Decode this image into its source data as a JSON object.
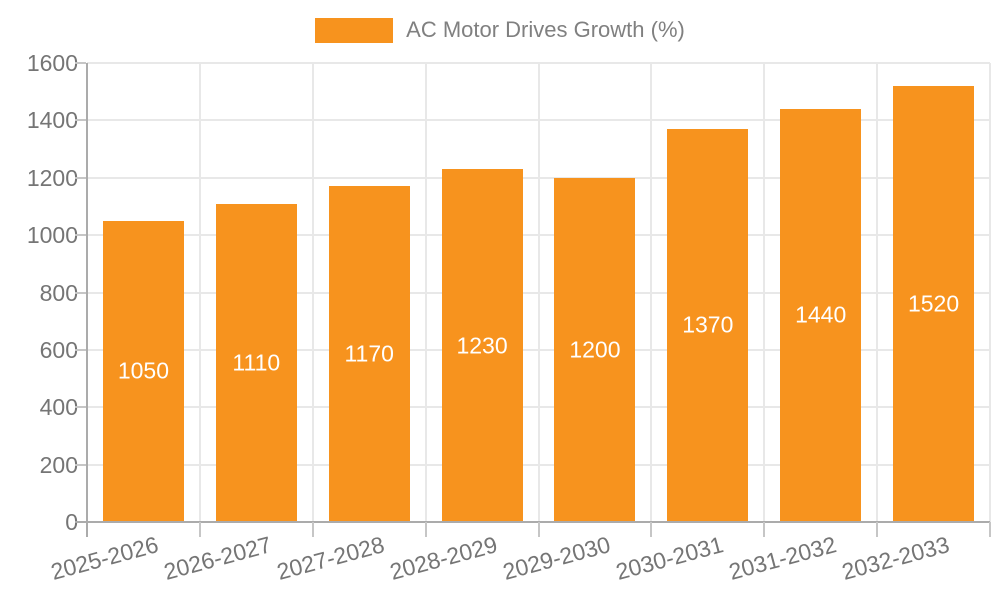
{
  "legend": {
    "label": "AC Motor Drives Growth (%)"
  },
  "chart_data": {
    "type": "bar",
    "title": "AC Motor Drives Growth (%)",
    "series_name": "AC Motor Drives Growth (%)",
    "categories": [
      "2025-2026",
      "2026-2027",
      "2027-2028",
      "2028-2029",
      "2029-2030",
      "2030-2031",
      "2031-2032",
      "2032-2033"
    ],
    "values": [
      1050,
      1110,
      1170,
      1230,
      1200,
      1370,
      1440,
      1520
    ],
    "bar_labels": [
      "1050",
      "1110",
      "1170",
      "1230",
      "1200",
      "1370",
      "1440",
      "1520"
    ],
    "xlabel": "",
    "ylabel": "",
    "ylim": [
      0,
      1600
    ],
    "ytick_step": 200,
    "ytick_labels": [
      "0",
      "200",
      "400",
      "600",
      "800",
      "1000",
      "1200",
      "1400",
      "1600"
    ],
    "grid": true,
    "x_tick_rotation_deg": -15,
    "legend_position": "top-center",
    "colors": {
      "bar": "#F7931E",
      "bar_label": "#FFFFFF",
      "grid": "#E8E8E8",
      "axis": "#ABABAB",
      "tick": "#C6C6C6",
      "tick_label": "#757575",
      "legend_text": "#808080",
      "background": "#FFFFFF"
    }
  }
}
